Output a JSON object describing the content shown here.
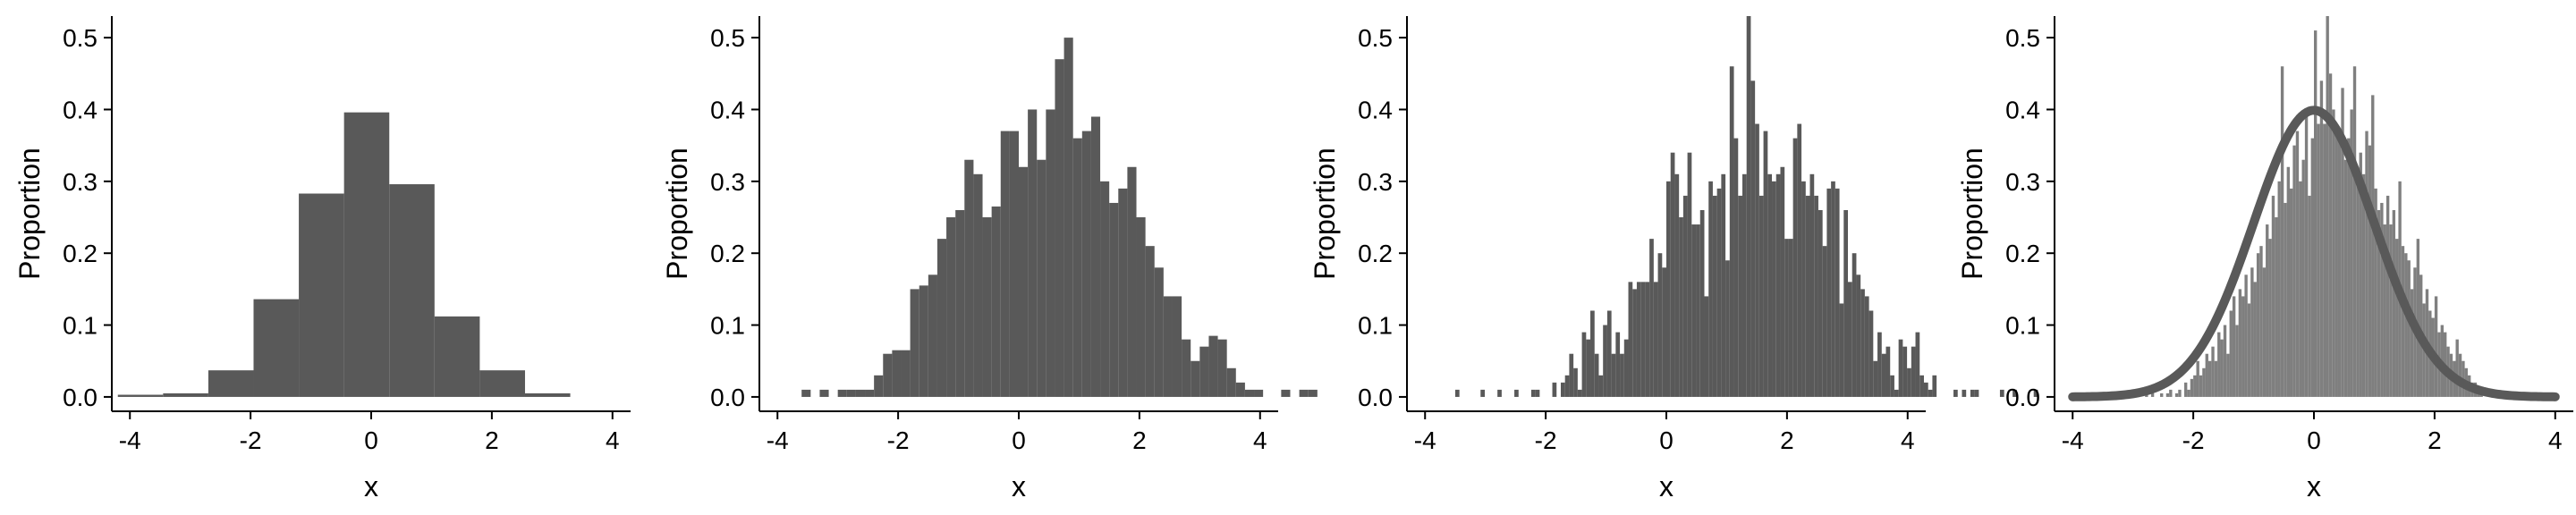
{
  "colors": {
    "bar": "#595959",
    "bar_light": "#7f7f7f",
    "curve": "#595959",
    "axis": "#000000"
  },
  "chart_data": [
    {
      "type": "bar",
      "xlabel": "x",
      "ylabel": "Proportion",
      "xlim": [
        -4.3,
        4.3
      ],
      "ylim": [
        -0.02,
        0.53
      ],
      "xticks": [
        "-4",
        "-2",
        "0",
        "2",
        "4"
      ],
      "yticks": [
        "0.0",
        "0.1",
        "0.2",
        "0.3",
        "0.4",
        "0.5"
      ],
      "bin_start": -4.2,
      "bin_width": 0.75,
      "values": [
        0.003,
        0.005,
        0.037,
        0.136,
        0.283,
        0.396,
        0.296,
        0.112,
        0.037,
        0.005
      ]
    },
    {
      "type": "bar",
      "xlabel": "x",
      "ylabel": "Proportion",
      "xlim": [
        -4.3,
        4.3
      ],
      "ylim": [
        -0.02,
        0.53
      ],
      "xticks": [
        "-4",
        "-2",
        "0",
        "2",
        "4"
      ],
      "yticks": [
        "0.0",
        "0.1",
        "0.2",
        "0.3",
        "0.4",
        "0.5"
      ],
      "bin_start": -3.6,
      "bin_width": 0.15,
      "values": [
        0.01,
        0.0,
        0.01,
        0.0,
        0.01,
        0.01,
        0.01,
        0.01,
        0.03,
        0.06,
        0.065,
        0.065,
        0.15,
        0.155,
        0.17,
        0.22,
        0.25,
        0.26,
        0.33,
        0.31,
        0.25,
        0.265,
        0.37,
        0.37,
        0.32,
        0.4,
        0.33,
        0.4,
        0.47,
        0.5,
        0.36,
        0.37,
        0.39,
        0.3,
        0.27,
        0.29,
        0.32,
        0.25,
        0.21,
        0.18,
        0.14,
        0.14,
        0.08,
        0.05,
        0.07,
        0.085,
        0.08,
        0.04,
        0.02,
        0.01,
        0.01,
        0.0,
        0.0,
        0.01,
        0.0,
        0.01,
        0.01
      ]
    },
    {
      "type": "bar",
      "xlabel": "x",
      "ylabel": "Proportion",
      "xlim": [
        -4.3,
        4.3
      ],
      "ylim": [
        -0.02,
        0.53
      ],
      "xticks": [
        "-4",
        "-2",
        "0",
        "2",
        "4"
      ],
      "yticks": [
        "0.0",
        "0.1",
        "0.2",
        "0.3",
        "0.4",
        "0.5"
      ],
      "bin_start": -3.5,
      "bin_width": 0.07,
      "values": [
        0.01,
        0.0,
        0.0,
        0.0,
        0.0,
        0.0,
        0.01,
        0.0,
        0.0,
        0.0,
        0.01,
        0.0,
        0.0,
        0.0,
        0.01,
        0.0,
        0.0,
        0.0,
        0.01,
        0.01,
        0.0,
        0.0,
        0.0,
        0.02,
        0.0,
        0.02,
        0.03,
        0.06,
        0.04,
        0.01,
        0.09,
        0.08,
        0.12,
        0.06,
        0.03,
        0.1,
        0.12,
        0.06,
        0.09,
        0.06,
        0.08,
        0.16,
        0.15,
        0.16,
        0.16,
        0.16,
        0.22,
        0.16,
        0.2,
        0.18,
        0.3,
        0.34,
        0.31,
        0.25,
        0.28,
        0.34,
        0.24,
        0.24,
        0.26,
        0.14,
        0.3,
        0.28,
        0.29,
        0.31,
        0.19,
        0.46,
        0.36,
        0.28,
        0.31,
        0.53,
        0.44,
        0.38,
        0.28,
        0.37,
        0.31,
        0.3,
        0.31,
        0.32,
        0.22,
        0.22,
        0.36,
        0.38,
        0.3,
        0.28,
        0.31,
        0.28,
        0.26,
        0.21,
        0.29,
        0.3,
        0.29,
        0.13,
        0.26,
        0.16,
        0.2,
        0.17,
        0.15,
        0.14,
        0.12,
        0.05,
        0.09,
        0.06,
        0.07,
        0.03,
        0.01,
        0.08,
        0.07,
        0.04,
        0.07,
        0.09,
        0.03,
        0.02,
        0.01,
        0.03,
        0.0,
        0.0,
        0.0,
        0.0,
        0.01,
        0.0,
        0.01,
        0.0,
        0.01,
        0.01,
        0.0,
        0.0,
        0.0,
        0.0,
        0.0,
        0.01,
        0.0,
        0.0,
        0.01,
        0.0,
        0.0,
        0.0,
        0.0,
        0.01
      ]
    },
    {
      "type": "bar",
      "xlabel": "x",
      "ylabel": "Proportion",
      "xlim": [
        -4.3,
        4.3
      ],
      "ylim": [
        -0.02,
        0.53
      ],
      "xticks": [
        "-4",
        "-2",
        "0",
        "2",
        "4"
      ],
      "yticks": [
        "0.0",
        "0.1",
        "0.2",
        "0.3",
        "0.4",
        "0.5"
      ],
      "bin_start": -2.8,
      "bin_width": 0.05,
      "values": [
        0.005,
        0.0,
        0.005,
        0.0,
        0.0,
        0.005,
        0.0,
        0.005,
        0.01,
        0.0,
        0.005,
        0.01,
        0.0,
        0.02,
        0.01,
        0.025,
        0.03,
        0.05,
        0.03,
        0.04,
        0.06,
        0.05,
        0.07,
        0.05,
        0.09,
        0.08,
        0.1,
        0.06,
        0.12,
        0.14,
        0.1,
        0.15,
        0.14,
        0.17,
        0.13,
        0.18,
        0.16,
        0.2,
        0.21,
        0.18,
        0.24,
        0.22,
        0.28,
        0.25,
        0.3,
        0.46,
        0.27,
        0.32,
        0.29,
        0.35,
        0.37,
        0.3,
        0.33,
        0.4,
        0.28,
        0.36,
        0.51,
        0.38,
        0.44,
        0.38,
        0.53,
        0.45,
        0.4,
        0.38,
        0.37,
        0.43,
        0.33,
        0.36,
        0.4,
        0.46,
        0.3,
        0.34,
        0.31,
        0.37,
        0.35,
        0.42,
        0.29,
        0.26,
        0.27,
        0.24,
        0.28,
        0.24,
        0.26,
        0.22,
        0.3,
        0.21,
        0.2,
        0.19,
        0.15,
        0.18,
        0.22,
        0.17,
        0.13,
        0.15,
        0.12,
        0.11,
        0.14,
        0.09,
        0.1,
        0.09,
        0.07,
        0.06,
        0.05,
        0.08,
        0.06,
        0.05,
        0.04,
        0.03,
        0.02,
        0.02,
        0.01,
        0.01
      ],
      "curve": {
        "name": "normal density",
        "mean": 0,
        "sd": 1,
        "x_range": [
          -4,
          4
        ]
      }
    }
  ]
}
